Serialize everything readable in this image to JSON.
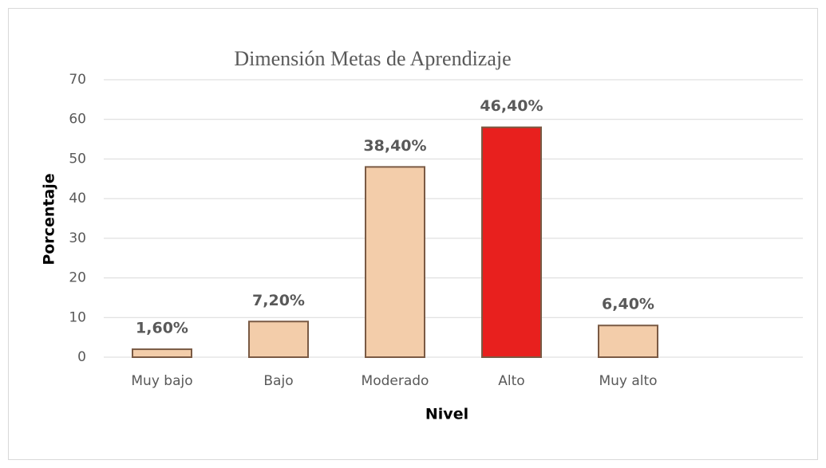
{
  "chart_data": {
    "type": "bar",
    "title": "Dimensión Metas de Aprendizaje",
    "categories": [
      "Muy bajo",
      "Bajo",
      "Moderado",
      "Alto",
      "Muy alto",
      null
    ],
    "values": [
      2,
      9,
      48,
      58,
      8,
      null
    ],
    "annotations": [
      "1,60%",
      "7,20%",
      "38,40%",
      "46,40%",
      "6,40%",
      null
    ],
    "colors": [
      "#f3cdaa",
      "#f3cdaa",
      "#f3cdaa",
      "#e8201e",
      "#f3cdaa",
      null
    ],
    "xlabel": "Nivel",
    "ylabel": "Porcentaje",
    "ylim": [
      0,
      70
    ],
    "yticks": [
      0,
      10,
      20,
      30,
      40,
      50,
      60,
      70
    ],
    "grid": true
  }
}
